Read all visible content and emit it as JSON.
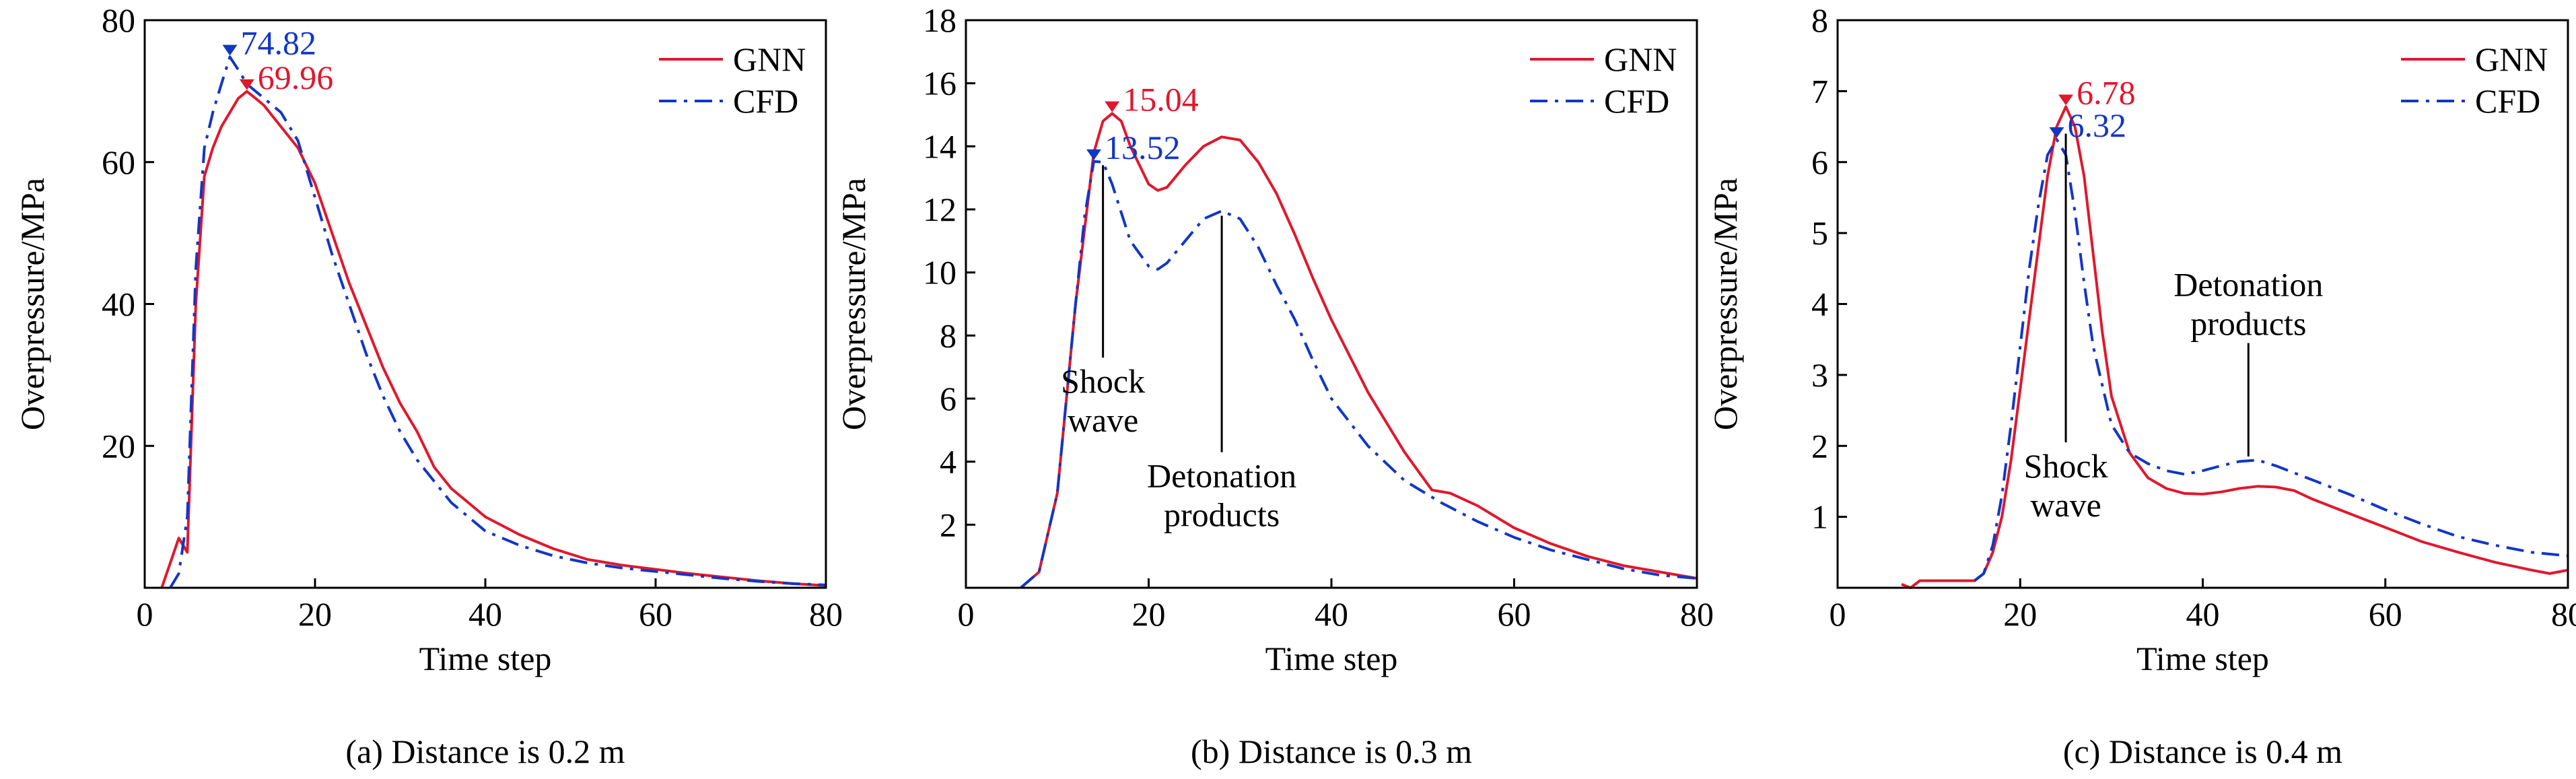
{
  "chart_data": [
    {
      "type": "line",
      "caption": "(a) Distance is 0.2 m",
      "xlabel": "Time step",
      "ylabel": "Overpressure/MPa",
      "xlim": [
        0,
        80
      ],
      "ylim": [
        0,
        80
      ],
      "xticks": [
        0,
        20,
        40,
        60,
        80
      ],
      "yticks": [
        20,
        40,
        60,
        80
      ],
      "legend_position": "top-right",
      "series": [
        {
          "name": "GNN",
          "color": "#e0182d",
          "dash": "solid",
          "x": [
            2,
            4,
            5,
            6,
            7,
            8,
            9,
            10,
            11,
            12,
            13,
            14,
            16,
            18,
            20,
            22,
            24,
            26,
            28,
            30,
            32,
            34,
            36,
            38,
            40,
            44,
            48,
            52,
            56,
            60,
            64,
            68,
            72,
            76,
            80
          ],
          "y": [
            0,
            7,
            5,
            40,
            58,
            62,
            65,
            67,
            69,
            69.96,
            69,
            68,
            65,
            62,
            57,
            50,
            43,
            37,
            31,
            26,
            22,
            17,
            14,
            12,
            10,
            7.5,
            5.5,
            4,
            3.2,
            2.6,
            2,
            1.5,
            1,
            0.6,
            0.3
          ]
        },
        {
          "name": "CFD",
          "color": "#1236c7",
          "dash": "dashdot",
          "x": [
            3,
            4,
            5,
            6,
            7,
            8,
            9,
            10,
            11,
            12,
            13,
            14,
            16,
            18,
            20,
            22,
            24,
            26,
            28,
            30,
            32,
            34,
            36,
            38,
            40,
            44,
            48,
            52,
            56,
            60,
            64,
            68,
            72,
            76,
            80
          ],
          "y": [
            0,
            2,
            10,
            45,
            62,
            67,
            71,
            74.82,
            73,
            71,
            70,
            69,
            67,
            63,
            55,
            47,
            40,
            33,
            27,
            22,
            18,
            15,
            12,
            10,
            8,
            6,
            4.5,
            3.5,
            2.8,
            2.3,
            1.8,
            1.3,
            0.9,
            0.6,
            0.4
          ]
        }
      ],
      "annotations": [
        {
          "text": "74.82",
          "x": 10,
          "y": 74.82,
          "color": "#1236c7"
        },
        {
          "text": "69.96",
          "x": 12,
          "y": 69.96,
          "color": "#e0182d"
        }
      ],
      "callouts": []
    },
    {
      "type": "line",
      "caption": "(b) Distance is 0.3 m",
      "xlabel": "Time step",
      "ylabel": "Overpressure/MPa",
      "xlim": [
        0,
        80
      ],
      "ylim": [
        0,
        18
      ],
      "xticks": [
        0,
        20,
        40,
        60,
        80
      ],
      "yticks": [
        2,
        4,
        6,
        8,
        10,
        12,
        14,
        16,
        18
      ],
      "legend_position": "top-right",
      "series": [
        {
          "name": "GNN",
          "color": "#e0182d",
          "dash": "solid",
          "x": [
            6,
            8,
            10,
            12,
            14,
            15,
            16,
            17,
            18,
            20,
            21,
            22,
            24,
            26,
            28,
            30,
            32,
            34,
            36,
            38,
            40,
            44,
            48,
            51,
            53,
            56,
            60,
            64,
            68,
            72,
            76,
            80
          ],
          "y": [
            0,
            0.5,
            3,
            9,
            13.8,
            14.8,
            15.04,
            14.8,
            14,
            12.8,
            12.6,
            12.7,
            13.4,
            14,
            14.3,
            14.2,
            13.5,
            12.5,
            11.2,
            9.8,
            8.5,
            6.2,
            4.3,
            3.1,
            3,
            2.6,
            1.9,
            1.4,
            1,
            0.7,
            0.5,
            0.3
          ]
        },
        {
          "name": "CFD",
          "color": "#1236c7",
          "dash": "dashdot",
          "x": [
            6,
            8,
            10,
            12,
            13,
            14,
            15,
            16,
            18,
            20,
            21,
            22,
            24,
            26,
            28,
            30,
            32,
            34,
            36,
            38,
            40,
            44,
            48,
            52,
            56,
            60,
            64,
            68,
            72,
            76,
            80
          ],
          "y": [
            0,
            0.5,
            3,
            9,
            11.8,
            13.52,
            13.5,
            12.8,
            11,
            10.2,
            10.1,
            10.3,
            11,
            11.7,
            11.95,
            11.7,
            10.8,
            9.6,
            8.5,
            7.2,
            6,
            4.5,
            3.4,
            2.7,
            2.1,
            1.6,
            1.2,
            0.9,
            0.6,
            0.4,
            0.3
          ]
        }
      ],
      "annotations": [
        {
          "text": "15.04",
          "x": 16,
          "y": 15.04,
          "color": "#e0182d"
        },
        {
          "text": "13.52",
          "x": 14,
          "y": 13.52,
          "color": "#1236c7"
        }
      ],
      "callouts": [
        {
          "lines": [
            "Shock",
            "wave"
          ],
          "x": 15,
          "y_top": 13.4,
          "y_bottom": 7.3
        },
        {
          "lines": [
            "Detonation",
            "products"
          ],
          "x": 28,
          "y_top": 11.8,
          "y_bottom": 4.3
        }
      ]
    },
    {
      "type": "line",
      "caption": "(c) Distance is 0.4 m",
      "xlabel": "Time step",
      "ylabel": "Overpressure/MPa",
      "xlim": [
        0,
        80
      ],
      "ylim": [
        0,
        8
      ],
      "xticks": [
        0,
        20,
        40,
        60,
        80
      ],
      "yticks": [
        1,
        2,
        3,
        4,
        5,
        6,
        7,
        8
      ],
      "legend_position": "top-right",
      "series": [
        {
          "name": "GNN",
          "color": "#e0182d",
          "dash": "solid",
          "x": [
            7,
            8,
            9,
            12,
            15,
            16,
            17,
            18,
            19,
            20,
            21,
            22,
            23,
            24,
            25,
            26,
            27,
            28,
            29,
            30,
            32,
            34,
            36,
            38,
            40,
            42,
            44,
            46,
            48,
            50,
            52,
            56,
            60,
            64,
            68,
            72,
            76,
            78,
            80
          ],
          "y": [
            0.05,
            0,
            0.1,
            0.1,
            0.1,
            0.2,
            0.5,
            1,
            1.8,
            2.8,
            3.8,
            4.8,
            5.8,
            6.5,
            6.78,
            6.5,
            5.8,
            4.7,
            3.6,
            2.7,
            1.9,
            1.55,
            1.4,
            1.33,
            1.32,
            1.35,
            1.4,
            1.43,
            1.42,
            1.37,
            1.25,
            1.05,
            0.85,
            0.65,
            0.5,
            0.36,
            0.25,
            0.2,
            0.25
          ]
        },
        {
          "name": "CFD",
          "color": "#1236c7",
          "dash": "dashdot",
          "x": [
            15,
            16,
            17,
            18,
            19,
            20,
            21,
            22,
            23,
            24,
            25,
            26,
            27,
            28,
            30,
            32,
            34,
            36,
            38,
            40,
            42,
            44,
            46,
            48,
            50,
            52,
            56,
            60,
            64,
            68,
            72,
            76,
            80
          ],
          "y": [
            0.1,
            0.2,
            0.6,
            1.3,
            2.3,
            3.4,
            4.5,
            5.4,
            6.1,
            6.32,
            6.1,
            5.3,
            4.3,
            3.4,
            2.3,
            1.9,
            1.75,
            1.65,
            1.6,
            1.65,
            1.72,
            1.78,
            1.8,
            1.72,
            1.62,
            1.52,
            1.32,
            1.1,
            0.9,
            0.72,
            0.6,
            0.5,
            0.45
          ]
        }
      ],
      "annotations": [
        {
          "text": "6.78",
          "x": 25,
          "y": 6.78,
          "color": "#e0182d"
        },
        {
          "text": "6.32",
          "x": 24,
          "y": 6.32,
          "color": "#1236c7"
        }
      ],
      "callouts": [
        {
          "lines": [
            "Shock",
            "wave"
          ],
          "x": 25,
          "y_top": 6.4,
          "y_bottom": 2.05
        },
        {
          "lines": [
            "Detonation",
            "products"
          ],
          "x": 45,
          "y_top": 1.85,
          "y_bottom": 3.45
        }
      ]
    }
  ]
}
